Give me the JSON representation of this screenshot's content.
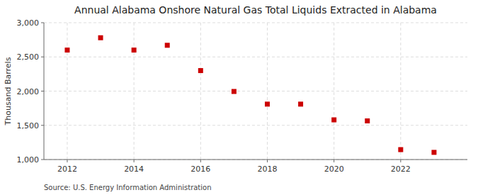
{
  "chart_data": {
    "type": "scatter",
    "title": "Annual Alabama Onshore Natural Gas Total Liquids Extracted in Alabama",
    "ylabel": "Thousand Barrels",
    "source": "Source: U.S. Energy Information Administration",
    "x": [
      2012,
      2013,
      2014,
      2015,
      2016,
      2017,
      2018,
      2019,
      2020,
      2021,
      2022,
      2023
    ],
    "values": [
      2600,
      2780,
      2600,
      2670,
      2300,
      1995,
      1810,
      1810,
      1580,
      1565,
      1145,
      1105
    ],
    "color": "#cc0000",
    "marker": "square",
    "xlim": [
      2011.3,
      2024.0
    ],
    "xticks": [
      2012,
      2014,
      2016,
      2018,
      2020,
      2022
    ],
    "ylim": [
      1000,
      3000
    ],
    "yticks": [
      {
        "value": 1000,
        "label": "1,000"
      },
      {
        "value": 1500,
        "label": "1,500"
      },
      {
        "value": 2000,
        "label": "2,000"
      },
      {
        "value": 2500,
        "label": "2,500"
      },
      {
        "value": 3000,
        "label": "3,000"
      }
    ],
    "grid": true
  }
}
